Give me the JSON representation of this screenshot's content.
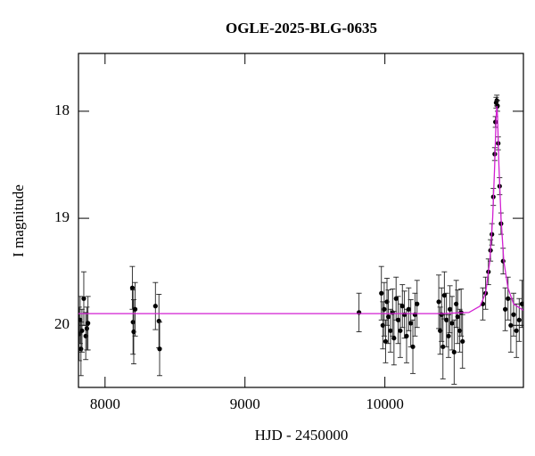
{
  "chart_data": {
    "type": "scatter",
    "title": "OGLE-2025-BLG-0635",
    "x_label": "HJD - 2450000",
    "y_label": "I magnitude",
    "xlim": [
      7810,
      10990
    ],
    "ylim": [
      17.46,
      20.58
    ],
    "y_inverted": true,
    "xticks": [
      8000,
      9000,
      10000
    ],
    "yticks": [
      18,
      19,
      20
    ],
    "color": "#000000",
    "x": [
      7815,
      7822,
      7828,
      7835,
      7848,
      7862,
      7870,
      7878,
      8195,
      8200,
      8205,
      8215,
      8360,
      8385,
      8390,
      9815,
      9975,
      9985,
      9995,
      10005,
      10015,
      10025,
      10040,
      10055,
      10065,
      10080,
      10095,
      10110,
      10125,
      10140,
      10155,
      10170,
      10185,
      10200,
      10215,
      10230,
      10385,
      10395,
      10405,
      10415,
      10425,
      10440,
      10455,
      10465,
      10480,
      10495,
      10510,
      10520,
      10535,
      10545,
      10555,
      10700,
      10720,
      10740,
      10755,
      10765,
      10775,
      10785,
      10790,
      10795,
      10800,
      10805,
      10810,
      10820,
      10830,
      10845,
      10860,
      10880,
      10900,
      10920,
      10940,
      10960,
      10980
    ],
    "values": [
      20.08,
      19.95,
      20.22,
      20.05,
      19.75,
      20.1,
      20.03,
      19.98,
      19.65,
      19.97,
      20.06,
      19.85,
      19.82,
      19.96,
      20.22,
      19.88,
      19.7,
      20.0,
      19.85,
      20.15,
      19.78,
      19.92,
      20.05,
      19.88,
      20.12,
      19.75,
      19.95,
      20.05,
      19.82,
      19.9,
      20.1,
      19.85,
      19.98,
      20.2,
      19.9,
      19.8,
      19.78,
      20.05,
      19.9,
      20.2,
      19.72,
      19.95,
      20.1,
      19.85,
      19.98,
      20.25,
      19.8,
      19.92,
      20.05,
      19.88,
      20.15,
      19.8,
      19.7,
      19.5,
      19.3,
      19.15,
      18.8,
      18.4,
      18.1,
      17.92,
      17.9,
      17.95,
      18.3,
      18.7,
      19.05,
      19.4,
      19.85,
      19.75,
      20.0,
      19.9,
      20.05,
      19.95,
      19.8
    ],
    "errors": [
      0.25,
      0.22,
      0.25,
      0.2,
      0.25,
      0.22,
      0.2,
      0.25,
      0.2,
      0.3,
      0.3,
      0.25,
      0.22,
      0.25,
      0.25,
      0.18,
      0.25,
      0.22,
      0.25,
      0.2,
      0.22,
      0.25,
      0.2,
      0.22,
      0.25,
      0.2,
      0.22,
      0.25,
      0.2,
      0.22,
      0.25,
      0.2,
      0.22,
      0.25,
      0.2,
      0.22,
      0.25,
      0.22,
      0.25,
      0.3,
      0.22,
      0.25,
      0.2,
      0.22,
      0.25,
      0.3,
      0.22,
      0.25,
      0.2,
      0.22,
      0.25,
      0.15,
      0.15,
      0.12,
      0.1,
      0.1,
      0.08,
      0.06,
      0.05,
      0.05,
      0.05,
      0.05,
      0.06,
      0.08,
      0.1,
      0.12,
      0.2,
      0.2,
      0.25,
      0.2,
      0.25,
      0.2,
      0.22
    ],
    "model": {
      "color": "#d21fd2",
      "x": [
        7810,
        10400,
        10600,
        10680,
        10720,
        10750,
        10770,
        10785,
        10795,
        10800,
        10805,
        10815,
        10830,
        10850,
        10880,
        10920,
        10990
      ],
      "values": [
        19.89,
        19.89,
        19.88,
        19.82,
        19.7,
        19.4,
        19.0,
        18.5,
        18.05,
        17.95,
        18.05,
        18.5,
        19.0,
        19.4,
        19.65,
        19.8,
        19.86
      ]
    }
  }
}
